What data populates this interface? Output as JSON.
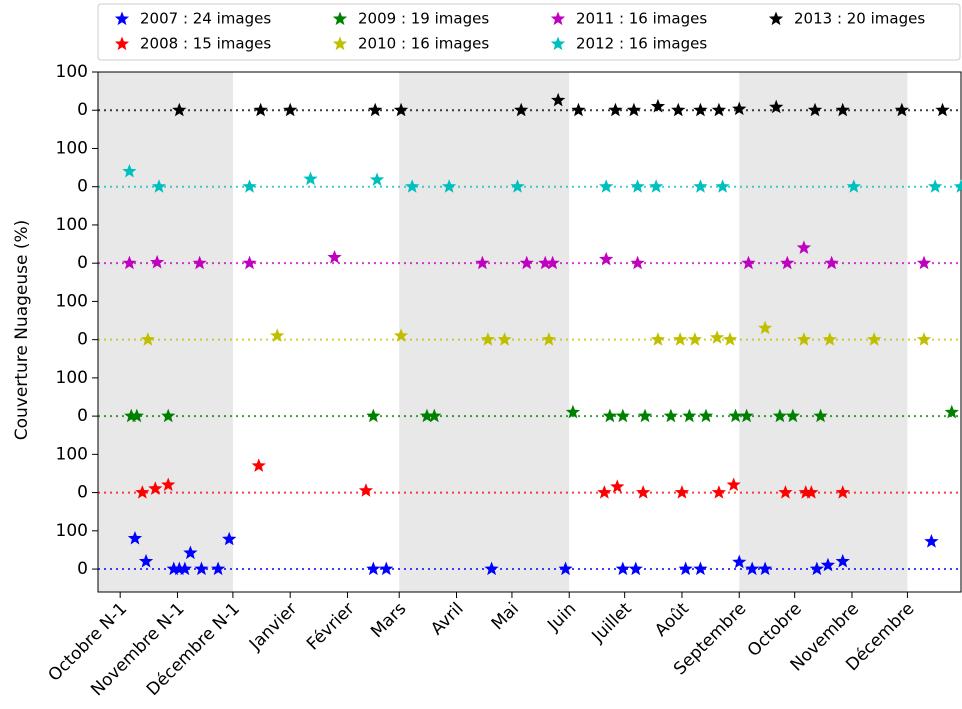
{
  "chart_data": {
    "type": "scatter",
    "ylabel": "Couverture Nuageuse (%)",
    "xlim": [
      -12,
      455
    ],
    "xticks": [
      {
        "value": 0,
        "label": "Octobre N-1"
      },
      {
        "value": 31,
        "label": "Novembre N-1"
      },
      {
        "value": 61,
        "label": "Décembre N-1"
      },
      {
        "value": 92,
        "label": "Janvier"
      },
      {
        "value": 123,
        "label": "Février"
      },
      {
        "value": 151,
        "label": "Mars"
      },
      {
        "value": 182,
        "label": "Avril"
      },
      {
        "value": 212,
        "label": "Mai"
      },
      {
        "value": 243,
        "label": "Juin"
      },
      {
        "value": 273,
        "label": "Juillet"
      },
      {
        "value": 304,
        "label": "Août"
      },
      {
        "value": 335,
        "label": "Septembre"
      },
      {
        "value": 365,
        "label": "Octobre"
      },
      {
        "value": 396,
        "label": "Novembre"
      },
      {
        "value": 426,
        "label": "Décembre"
      }
    ],
    "shaded_spans": [
      [
        -12,
        61
      ],
      [
        151,
        243
      ],
      [
        335,
        426
      ]
    ],
    "ylim": [
      -60,
      1300
    ],
    "yticks": [
      0,
      100,
      {
        "value": 200,
        "label": "0"
      },
      {
        "value": 300,
        "label": "100"
      },
      {
        "value": 400,
        "label": "0"
      },
      {
        "value": 500,
        "label": "100"
      },
      {
        "value": 600,
        "label": "0"
      },
      {
        "value": 700,
        "label": "100"
      },
      {
        "value": 800,
        "label": "0"
      },
      {
        "value": 900,
        "label": "100"
      },
      {
        "value": 1000,
        "label": "0"
      },
      {
        "value": 1100,
        "label": "100"
      },
      {
        "value": 1200,
        "label": "0"
      },
      {
        "value": 1300,
        "label": "100"
      }
    ],
    "legend": "top",
    "series": [
      {
        "name": "2007 : 24 images",
        "color": "#0000ff",
        "x": [
          8,
          14,
          29,
          32,
          35,
          38,
          44,
          53,
          59,
          137,
          144,
          201,
          241,
          272,
          279,
          306,
          314,
          335,
          342,
          349,
          377,
          383,
          391,
          439
        ],
        "values": [
          80,
          20,
          0,
          0,
          0,
          42,
          0,
          0,
          78,
          0,
          0,
          0,
          0,
          0,
          0,
          0,
          0,
          18,
          0,
          0,
          0,
          10,
          20,
          72
        ]
      },
      {
        "name": "2008 : 15 images",
        "color": "#ff0000",
        "x": [
          12,
          19,
          26,
          75,
          133,
          262,
          269,
          283,
          304,
          324,
          332,
          360,
          371,
          374,
          391
        ],
        "values": [
          200,
          210,
          220,
          270,
          205,
          200,
          215,
          200,
          200,
          200,
          220,
          200,
          200,
          200,
          200
        ]
      },
      {
        "name": "2009 : 19 images",
        "color": "#008000",
        "x": [
          6,
          9,
          26,
          137,
          166,
          170,
          245,
          265,
          272,
          284,
          298,
          308,
          317,
          333,
          339,
          357,
          364,
          379,
          450
        ],
        "values": [
          400,
          400,
          400,
          400,
          400,
          400,
          410,
          400,
          400,
          400,
          400,
          400,
          400,
          400,
          400,
          400,
          400,
          400,
          410
        ]
      },
      {
        "name": "2010 : 16 images",
        "color": "#bfbf00",
        "x": [
          15,
          85,
          152,
          199,
          208,
          232,
          291,
          303,
          311,
          323,
          330,
          349,
          370,
          384,
          408,
          435
        ],
        "values": [
          600,
          610,
          610,
          600,
          600,
          600,
          600,
          600,
          600,
          605,
          600,
          630,
          600,
          600,
          600,
          600
        ]
      },
      {
        "name": "2011 : 16 images",
        "color": "#bf00bf",
        "x": [
          5,
          20,
          43,
          70,
          116,
          196,
          220,
          230,
          234,
          263,
          280,
          340,
          361,
          370,
          385,
          435
        ],
        "values": [
          800,
          802,
          800,
          800,
          815,
          800,
          800,
          800,
          800,
          810,
          800,
          800,
          800,
          840,
          800,
          800
        ]
      },
      {
        "name": "2012 : 16 images",
        "color": "#00bfbf",
        "x": [
          5,
          21,
          70,
          103,
          139,
          158,
          178,
          215,
          263,
          280,
          290,
          314,
          326,
          397,
          441,
          455
        ],
        "values": [
          1040,
          1000,
          1000,
          1020,
          1018,
          1000,
          1000,
          1000,
          1000,
          1000,
          1000,
          1000,
          1000,
          1000,
          1000,
          1000
        ]
      },
      {
        "name": "2013 : 20 images",
        "color": "#000000",
        "x": [
          32,
          76,
          92,
          138,
          152,
          217,
          237,
          248,
          268,
          278,
          291,
          302,
          314,
          324,
          335,
          355,
          376,
          391,
          423,
          445
        ],
        "values": [
          1200,
          1200,
          1200,
          1200,
          1200,
          1200,
          1226,
          1200,
          1200,
          1200,
          1210,
          1200,
          1200,
          1200,
          1203,
          1208,
          1200,
          1200,
          1200,
          1200
        ]
      }
    ]
  }
}
